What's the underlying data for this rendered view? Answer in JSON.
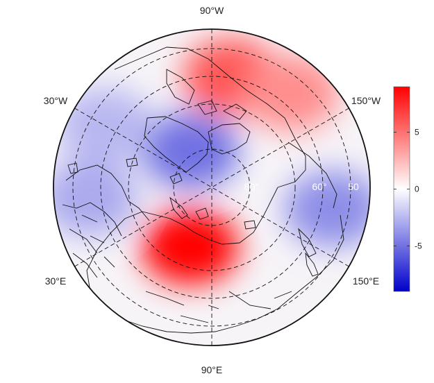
{
  "map": {
    "projection": "north-polar-stereographic",
    "grid": true,
    "lon_labels": {
      "top": "90°W",
      "bottom": "90°E",
      "upper_left": "30°W",
      "upper_right": "150°W",
      "lower_left": "30°E",
      "lower_right": "150°E"
    },
    "lat_labels": [
      "80°",
      "60°",
      "50"
    ],
    "anomaly_blobs": [
      {
        "description": "positive",
        "value": 9,
        "lon_deg": 70,
        "lat_deg": 72
      },
      {
        "description": "positive",
        "value": 6,
        "lon_deg": -100,
        "lat_deg": 58
      },
      {
        "description": "positive",
        "value": 4,
        "lon_deg": -130,
        "lat_deg": 55
      },
      {
        "description": "negative",
        "value": -5,
        "lon_deg": -60,
        "lat_deg": 78
      },
      {
        "description": "negative",
        "value": -4,
        "lon_deg": 170,
        "lat_deg": 55
      },
      {
        "description": "negative",
        "value": -3,
        "lon_deg": 5,
        "lat_deg": 55
      },
      {
        "description": "negative",
        "value": -2.5,
        "lon_deg": -30,
        "lat_deg": 55
      }
    ]
  },
  "colorbar": {
    "min": -9,
    "max": 9,
    "ticks": [
      5,
      0,
      -5
    ],
    "tick_labels": [
      "5",
      "0",
      "-5"
    ],
    "colors": {
      "low": "#0000cc",
      "mid": "#ffffff",
      "high": "#ff0000"
    }
  }
}
